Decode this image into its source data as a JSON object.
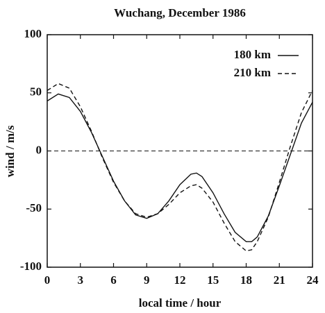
{
  "chart_data": {
    "type": "line",
    "title": "Wuchang, December 1986",
    "xlabel": "local time / hour",
    "ylabel": "wind / m/s",
    "x": [
      0,
      1,
      2,
      3,
      4,
      5,
      6,
      7,
      8,
      9,
      10,
      11,
      12,
      13,
      13.5,
      14,
      15,
      16,
      17,
      18,
      18.5,
      19,
      20,
      21,
      22,
      23,
      24
    ],
    "series": [
      {
        "name": "180 km",
        "color": "#111111",
        "dash": "solid",
        "values": [
          43,
          49,
          46,
          34,
          16,
          -5,
          -26,
          -43,
          -55,
          -58,
          -54,
          -43,
          -29,
          -20,
          -19,
          -22,
          -36,
          -54,
          -70,
          -78,
          -78,
          -74,
          -56,
          -30,
          -3,
          24,
          42
        ]
      },
      {
        "name": "210 km",
        "color": "#111111",
        "dash": "dashed",
        "values": [
          52,
          58,
          54,
          38,
          17,
          -6,
          -27,
          -43,
          -54,
          -57,
          -54,
          -46,
          -36,
          -30,
          -29,
          -32,
          -44,
          -62,
          -78,
          -86,
          -85,
          -78,
          -57,
          -27,
          4,
          33,
          52
        ]
      }
    ],
    "hline": 0,
    "xlim": [
      0,
      24
    ],
    "xticks": [
      0,
      3,
      6,
      9,
      12,
      15,
      18,
      21,
      24
    ],
    "ylim": [
      -100,
      100
    ],
    "yticks": [
      -100,
      -50,
      0,
      50,
      100
    ],
    "legend": "upper right"
  }
}
